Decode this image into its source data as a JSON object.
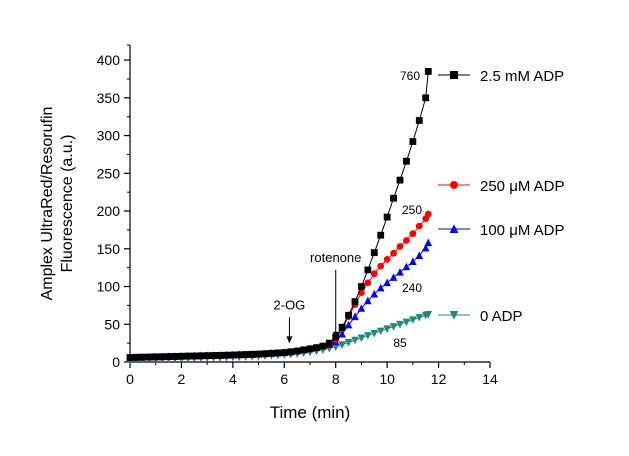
{
  "chart_data": {
    "type": "line",
    "title": "",
    "xlabel": "Time (min)",
    "ylabel_lines": [
      "Amplex UltraRed/Resorufin",
      "Fluorescence (a.u.)"
    ],
    "xlim": [
      0,
      14
    ],
    "ylim": [
      0,
      420
    ],
    "x_ticks": [
      0,
      2,
      4,
      6,
      8,
      10,
      12,
      14
    ],
    "y_ticks": [
      0,
      50,
      100,
      150,
      200,
      250,
      300,
      350,
      400
    ],
    "grid": false,
    "legend": "right",
    "series": [
      {
        "name": "2.5 mM ADP",
        "color": "#000000",
        "marker": "square",
        "end_label": "760",
        "points": [
          [
            0,
            6
          ],
          [
            0.25,
            6.2
          ],
          [
            0.5,
            6.4
          ],
          [
            0.75,
            6.6
          ],
          [
            1,
            6.8
          ],
          [
            1.25,
            7
          ],
          [
            1.5,
            7.2
          ],
          [
            1.75,
            7.4
          ],
          [
            2,
            7.6
          ],
          [
            2.25,
            7.8
          ],
          [
            2.5,
            8
          ],
          [
            2.75,
            8.2
          ],
          [
            3,
            8.4
          ],
          [
            3.25,
            8.6
          ],
          [
            3.5,
            8.8
          ],
          [
            3.75,
            9
          ],
          [
            4,
            9.3
          ],
          [
            4.25,
            9.6
          ],
          [
            4.5,
            9.9
          ],
          [
            4.75,
            10.2
          ],
          [
            5,
            10.5
          ],
          [
            5.25,
            11
          ],
          [
            5.5,
            11.5
          ],
          [
            5.75,
            12
          ],
          [
            6,
            12.5
          ],
          [
            6.25,
            13.5
          ],
          [
            6.5,
            14.5
          ],
          [
            6.75,
            16
          ],
          [
            7,
            17.5
          ],
          [
            7.25,
            19
          ],
          [
            7.5,
            21
          ],
          [
            7.75,
            25
          ],
          [
            8,
            33
          ],
          [
            8.25,
            46
          ],
          [
            8.5,
            62
          ],
          [
            8.75,
            80
          ],
          [
            9,
            100
          ],
          [
            9.25,
            122
          ],
          [
            9.5,
            145
          ],
          [
            9.75,
            168
          ],
          [
            10,
            192
          ],
          [
            10.25,
            217
          ],
          [
            10.5,
            241
          ],
          [
            10.75,
            266
          ],
          [
            11,
            292
          ],
          [
            11.25,
            320
          ],
          [
            11.5,
            350
          ],
          [
            11.6,
            385
          ]
        ]
      },
      {
        "name": "250 μM ADP",
        "color": "#ff0000",
        "marker": "circle",
        "end_label": "250",
        "points": [
          [
            0,
            6
          ],
          [
            0.25,
            6.2
          ],
          [
            0.5,
            6.4
          ],
          [
            0.75,
            6.6
          ],
          [
            1,
            6.8
          ],
          [
            1.25,
            7
          ],
          [
            1.5,
            7.2
          ],
          [
            1.75,
            7.4
          ],
          [
            2,
            7.6
          ],
          [
            2.25,
            7.8
          ],
          [
            2.5,
            8
          ],
          [
            2.75,
            8.2
          ],
          [
            3,
            8.4
          ],
          [
            3.25,
            8.6
          ],
          [
            3.5,
            8.8
          ],
          [
            3.75,
            9
          ],
          [
            4,
            9.3
          ],
          [
            4.25,
            9.6
          ],
          [
            4.5,
            9.9
          ],
          [
            4.75,
            10.2
          ],
          [
            5,
            10.5
          ],
          [
            5.25,
            11
          ],
          [
            5.5,
            11.5
          ],
          [
            5.75,
            12
          ],
          [
            6,
            12.5
          ],
          [
            6.25,
            13.5
          ],
          [
            6.5,
            14.5
          ],
          [
            6.75,
            16
          ],
          [
            7,
            17.5
          ],
          [
            7.25,
            19
          ],
          [
            7.5,
            21
          ],
          [
            7.75,
            24
          ],
          [
            8,
            30
          ],
          [
            8.25,
            44
          ],
          [
            8.5,
            60
          ],
          [
            8.75,
            76
          ],
          [
            9,
            92
          ],
          [
            9.25,
            105
          ],
          [
            9.5,
            117
          ],
          [
            9.75,
            127
          ],
          [
            10,
            136
          ],
          [
            10.25,
            144
          ],
          [
            10.5,
            153
          ],
          [
            10.75,
            161
          ],
          [
            11,
            170
          ],
          [
            11.25,
            180
          ],
          [
            11.5,
            190
          ],
          [
            11.6,
            196
          ]
        ]
      },
      {
        "name": "100 μM ADP",
        "color": "#0000ff",
        "marker": "triangle-up",
        "end_label": "240",
        "points": [
          [
            0,
            6
          ],
          [
            0.25,
            6.2
          ],
          [
            0.5,
            6.4
          ],
          [
            0.75,
            6.6
          ],
          [
            1,
            6.8
          ],
          [
            1.25,
            7
          ],
          [
            1.5,
            7.2
          ],
          [
            1.75,
            7.4
          ],
          [
            2,
            7.6
          ],
          [
            2.25,
            7.8
          ],
          [
            2.5,
            8
          ],
          [
            2.75,
            8.2
          ],
          [
            3,
            8.4
          ],
          [
            3.25,
            8.6
          ],
          [
            3.5,
            8.8
          ],
          [
            3.75,
            9
          ],
          [
            4,
            9.3
          ],
          [
            4.25,
            9.6
          ],
          [
            4.5,
            9.9
          ],
          [
            4.75,
            10.2
          ],
          [
            5,
            10.5
          ],
          [
            5.25,
            11
          ],
          [
            5.5,
            11.5
          ],
          [
            5.75,
            12
          ],
          [
            6,
            12.5
          ],
          [
            6.25,
            13.5
          ],
          [
            6.5,
            14.5
          ],
          [
            6.75,
            16
          ],
          [
            7,
            17.5
          ],
          [
            7.25,
            19
          ],
          [
            7.5,
            21
          ],
          [
            7.75,
            23
          ],
          [
            8,
            27
          ],
          [
            8.25,
            37
          ],
          [
            8.5,
            49
          ],
          [
            8.75,
            60
          ],
          [
            9,
            71
          ],
          [
            9.25,
            81
          ],
          [
            9.5,
            90
          ],
          [
            9.75,
            98
          ],
          [
            10,
            105
          ],
          [
            10.25,
            112
          ],
          [
            10.5,
            119
          ],
          [
            10.75,
            126
          ],
          [
            11,
            133
          ],
          [
            11.25,
            141
          ],
          [
            11.5,
            151
          ],
          [
            11.6,
            158
          ]
        ]
      },
      {
        "name": "0 ADP",
        "color": "#1f8a7a",
        "marker": "triangle-down",
        "end_label": "85",
        "points": [
          [
            0,
            3
          ],
          [
            0.25,
            3.2
          ],
          [
            0.5,
            3.4
          ],
          [
            0.75,
            3.6
          ],
          [
            1,
            3.8
          ],
          [
            1.25,
            4
          ],
          [
            1.5,
            4.2
          ],
          [
            1.75,
            4.4
          ],
          [
            2,
            4.6
          ],
          [
            2.25,
            4.8
          ],
          [
            2.5,
            5
          ],
          [
            2.75,
            5.2
          ],
          [
            3,
            5.4
          ],
          [
            3.25,
            5.6
          ],
          [
            3.5,
            5.8
          ],
          [
            3.75,
            6
          ],
          [
            4,
            6.3
          ],
          [
            4.25,
            6.6
          ],
          [
            4.5,
            6.9
          ],
          [
            4.75,
            7.2
          ],
          [
            5,
            7.5
          ],
          [
            5.25,
            8
          ],
          [
            5.5,
            8.5
          ],
          [
            5.75,
            9
          ],
          [
            6,
            9.5
          ],
          [
            6.25,
            10.2
          ],
          [
            6.5,
            11
          ],
          [
            6.75,
            12
          ],
          [
            7,
            13
          ],
          [
            7.25,
            14.5
          ],
          [
            7.5,
            16
          ],
          [
            7.75,
            18
          ],
          [
            8,
            20
          ],
          [
            8.25,
            23
          ],
          [
            8.5,
            26
          ],
          [
            8.75,
            29
          ],
          [
            9,
            32
          ],
          [
            9.25,
            35
          ],
          [
            9.5,
            38
          ],
          [
            9.75,
            41
          ],
          [
            10,
            44
          ],
          [
            10.25,
            47
          ],
          [
            10.5,
            50
          ],
          [
            10.75,
            53
          ],
          [
            11,
            56
          ],
          [
            11.25,
            59
          ],
          [
            11.5,
            62
          ],
          [
            11.6,
            63
          ]
        ]
      }
    ],
    "annotations": [
      {
        "text": "2-OG",
        "x": 6.2,
        "y": 22,
        "label_y": 75
      },
      {
        "text": "rotenone",
        "x": 8.0,
        "y": 28,
        "label_y": 138
      }
    ]
  }
}
